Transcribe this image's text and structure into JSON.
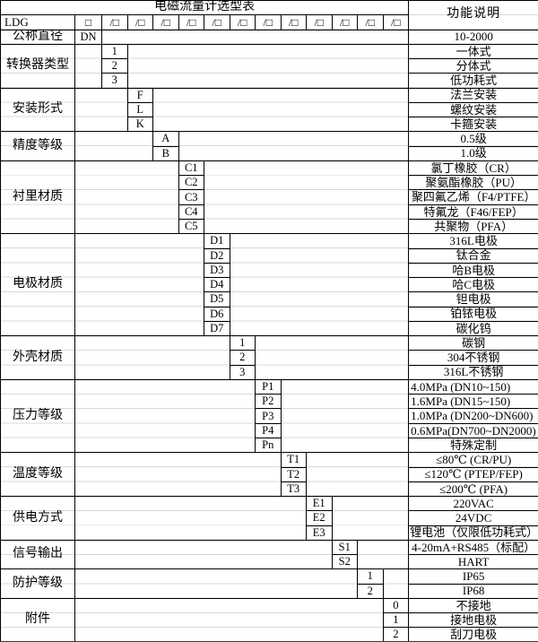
{
  "title": "电磁流量计选型表",
  "function_header": "功能说明",
  "model_row": {
    "prefix": "LDG",
    "box": "□",
    "slot": "/□",
    "slot_count": 12
  },
  "sections": [
    {
      "label": "公称直径",
      "col": 2,
      "rows": [
        {
          "code": "DN",
          "desc": "10-2000"
        }
      ]
    },
    {
      "label": "转换器类型",
      "col": 3,
      "rows": [
        {
          "code": "1",
          "desc": "一体式"
        },
        {
          "code": "2",
          "desc": "分体式"
        },
        {
          "code": "3",
          "desc": "低功耗式"
        }
      ]
    },
    {
      "label": "安装形式",
      "col": 4,
      "rows": [
        {
          "code": "F",
          "desc": "法兰安装"
        },
        {
          "code": "L",
          "desc": "螺纹安装"
        },
        {
          "code": "K",
          "desc": "卡箍安装"
        }
      ]
    },
    {
      "label": "精度等级",
      "col": 5,
      "rows": [
        {
          "code": "A",
          "desc": "0.5级"
        },
        {
          "code": "B",
          "desc": "1.0级"
        }
      ]
    },
    {
      "label": "衬里材质",
      "col": 6,
      "rows": [
        {
          "code": "C1",
          "desc": "氯丁橡胶（CR）"
        },
        {
          "code": "C2",
          "desc": "聚氨酯橡胶（PU）"
        },
        {
          "code": "C3",
          "desc": "聚四氟乙烯（F4/PTFE）"
        },
        {
          "code": "C4",
          "desc": "特氟龙（F46/FEP）"
        },
        {
          "code": "C5",
          "desc": "共聚物（PFA）"
        }
      ]
    },
    {
      "label": "电极材质",
      "col": 7,
      "rows": [
        {
          "code": "D1",
          "desc": "316L电极"
        },
        {
          "code": "D2",
          "desc": "钛合金"
        },
        {
          "code": "D3",
          "desc": "哈B电极"
        },
        {
          "code": "D4",
          "desc": "哈C电极"
        },
        {
          "code": "D5",
          "desc": "钽电极"
        },
        {
          "code": "D6",
          "desc": "铂铱电极"
        },
        {
          "code": "D7",
          "desc": "碳化钨"
        }
      ]
    },
    {
      "label": "外壳材质",
      "col": 8,
      "rows": [
        {
          "code": "1",
          "desc": "碳钢"
        },
        {
          "code": "2",
          "desc": "304不锈钢"
        },
        {
          "code": "3",
          "desc": "316L不锈钢"
        }
      ]
    },
    {
      "label": "压力等级",
      "col": 9,
      "rows": [
        {
          "code": "P1",
          "desc": "4.0MPa (DN10~150)",
          "align": "left"
        },
        {
          "code": "P2",
          "desc": "1.6MPa (DN15~150)",
          "align": "left"
        },
        {
          "code": "P3",
          "desc": "1.0MPa (DN200~DN600)",
          "align": "left"
        },
        {
          "code": "P4",
          "desc": "0.6MPa(DN700~DN2000)",
          "align": "left"
        },
        {
          "code": "Pn",
          "desc": "特殊定制"
        }
      ]
    },
    {
      "label": "温度等级",
      "col": 10,
      "rows": [
        {
          "code": "T1",
          "desc": "≤80℃ (CR/PU)"
        },
        {
          "code": "T2",
          "desc": "≤120℃ (PTEP/FEP)"
        },
        {
          "code": "T3",
          "desc": "≤200℃ (PFA)"
        }
      ]
    },
    {
      "label": "供电方式",
      "col": 11,
      "rows": [
        {
          "code": "E1",
          "desc": "220VAC"
        },
        {
          "code": "E2",
          "desc": "24VDC"
        },
        {
          "code": "E3",
          "desc": "锂电池（仅限低功耗式）"
        }
      ]
    },
    {
      "label": "信号输出",
      "col": 12,
      "rows": [
        {
          "code": "S1",
          "desc": "4-20mA+RS485（标配）"
        },
        {
          "code": "S2",
          "desc": "HART"
        }
      ]
    },
    {
      "label": "防护等级",
      "col": 13,
      "rows": [
        {
          "code": "1",
          "desc": "IP65"
        },
        {
          "code": "2",
          "desc": "IP68"
        }
      ]
    },
    {
      "label": "附件",
      "col": 14,
      "rows": [
        {
          "code": "0",
          "desc": "不接地"
        },
        {
          "code": "1",
          "desc": "接地电极"
        },
        {
          "code": "2",
          "desc": "刮刀电极"
        }
      ]
    }
  ],
  "layout_colors": {
    "border": "#000000",
    "thick_bottom_border": "#3f3f3f",
    "faint_gridline": "#d8d8d8",
    "background": "#ffffff",
    "text": "#000000"
  }
}
